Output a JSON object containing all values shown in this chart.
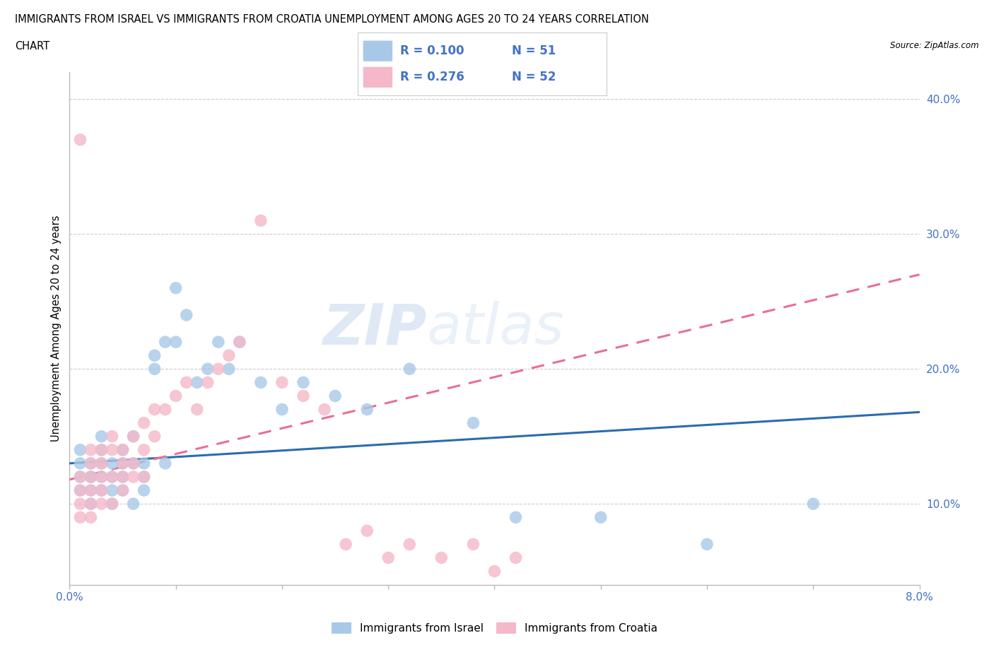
{
  "title_line1": "IMMIGRANTS FROM ISRAEL VS IMMIGRANTS FROM CROATIA UNEMPLOYMENT AMONG AGES 20 TO 24 YEARS CORRELATION",
  "title_line2": "CHART",
  "source_text": "Source: ZipAtlas.com",
  "ylabel": "Unemployment Among Ages 20 to 24 years",
  "xlim": [
    0.0,
    0.08
  ],
  "ylim": [
    0.04,
    0.42
  ],
  "xticks": [
    0.0,
    0.01,
    0.02,
    0.03,
    0.04,
    0.05,
    0.06,
    0.07,
    0.08
  ],
  "xticklabels": [
    "0.0%",
    "",
    "",
    "",
    "",
    "",
    "",
    "",
    "8.0%"
  ],
  "yticks_right": [
    0.1,
    0.2,
    0.3,
    0.4
  ],
  "ytick_right_labels": [
    "10.0%",
    "20.0%",
    "30.0%",
    "40.0%"
  ],
  "blue_color": "#a8c8e8",
  "pink_color": "#f4b8c8",
  "blue_line_color": "#2b6cb0",
  "pink_line_color": "#e87090",
  "tick_label_color": "#4472c4",
  "legend_label_israel": "Immigrants from Israel",
  "legend_label_croatia": "Immigrants from Croatia",
  "watermark_zip": "ZIP",
  "watermark_atlas": "atlas",
  "israel_x": [
    0.001,
    0.001,
    0.001,
    0.001,
    0.002,
    0.002,
    0.002,
    0.002,
    0.002,
    0.003,
    0.003,
    0.003,
    0.003,
    0.003,
    0.004,
    0.004,
    0.004,
    0.004,
    0.005,
    0.005,
    0.005,
    0.005,
    0.006,
    0.006,
    0.006,
    0.007,
    0.007,
    0.007,
    0.008,
    0.008,
    0.009,
    0.009,
    0.01,
    0.01,
    0.011,
    0.012,
    0.013,
    0.014,
    0.015,
    0.016,
    0.018,
    0.02,
    0.022,
    0.025,
    0.028,
    0.032,
    0.038,
    0.042,
    0.05,
    0.06,
    0.07
  ],
  "israel_y": [
    0.13,
    0.12,
    0.11,
    0.14,
    0.12,
    0.11,
    0.13,
    0.1,
    0.12,
    0.14,
    0.13,
    0.11,
    0.12,
    0.15,
    0.13,
    0.11,
    0.1,
    0.12,
    0.14,
    0.11,
    0.13,
    0.12,
    0.15,
    0.13,
    0.1,
    0.13,
    0.11,
    0.12,
    0.21,
    0.2,
    0.22,
    0.13,
    0.26,
    0.22,
    0.24,
    0.19,
    0.2,
    0.22,
    0.2,
    0.22,
    0.19,
    0.17,
    0.19,
    0.18,
    0.17,
    0.2,
    0.16,
    0.09,
    0.09,
    0.07,
    0.1
  ],
  "croatia_x": [
    0.001,
    0.001,
    0.001,
    0.001,
    0.001,
    0.002,
    0.002,
    0.002,
    0.002,
    0.002,
    0.002,
    0.003,
    0.003,
    0.003,
    0.003,
    0.003,
    0.004,
    0.004,
    0.004,
    0.004,
    0.005,
    0.005,
    0.005,
    0.005,
    0.006,
    0.006,
    0.006,
    0.007,
    0.007,
    0.007,
    0.008,
    0.008,
    0.009,
    0.01,
    0.011,
    0.012,
    0.013,
    0.014,
    0.015,
    0.016,
    0.018,
    0.02,
    0.022,
    0.024,
    0.026,
    0.028,
    0.03,
    0.032,
    0.035,
    0.038,
    0.04,
    0.042
  ],
  "croatia_y": [
    0.37,
    0.12,
    0.1,
    0.11,
    0.09,
    0.14,
    0.12,
    0.1,
    0.11,
    0.13,
    0.09,
    0.14,
    0.1,
    0.12,
    0.11,
    0.13,
    0.14,
    0.12,
    0.1,
    0.15,
    0.13,
    0.11,
    0.14,
    0.12,
    0.15,
    0.13,
    0.12,
    0.16,
    0.14,
    0.12,
    0.17,
    0.15,
    0.17,
    0.18,
    0.19,
    0.17,
    0.19,
    0.2,
    0.21,
    0.22,
    0.31,
    0.19,
    0.18,
    0.17,
    0.07,
    0.08,
    0.06,
    0.07,
    0.06,
    0.07,
    0.05,
    0.06
  ],
  "israel_trend_x": [
    0.0,
    0.08
  ],
  "israel_trend_y": [
    0.13,
    0.168
  ],
  "croatia_trend_x": [
    0.0,
    0.08
  ],
  "croatia_trend_y": [
    0.118,
    0.27
  ]
}
